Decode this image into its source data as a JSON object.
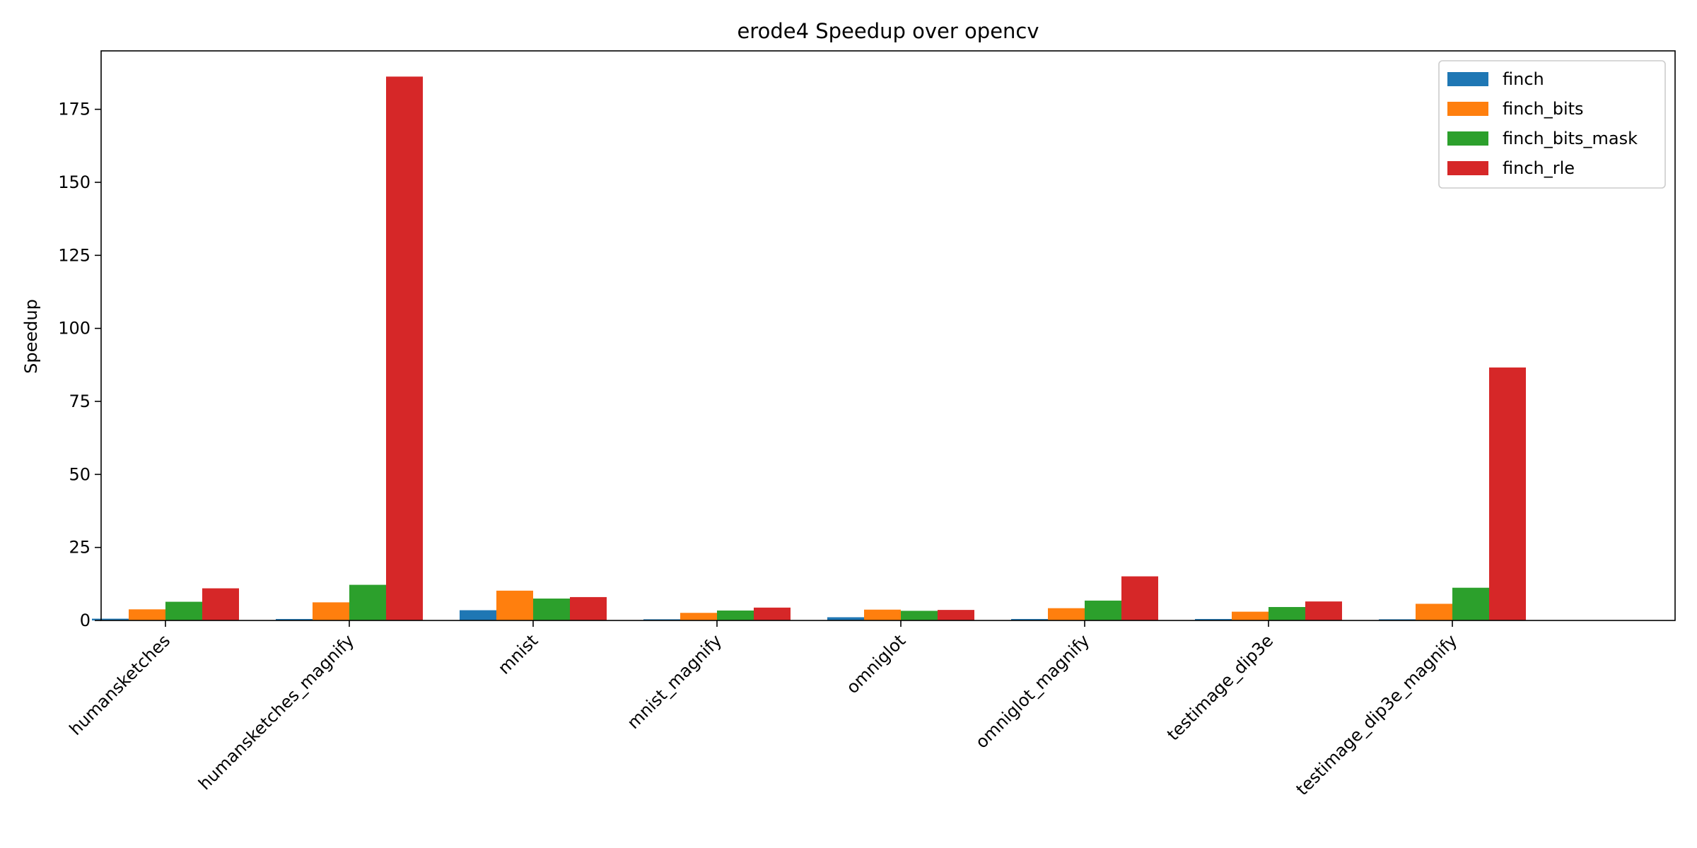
{
  "chart_data": {
    "type": "bar",
    "title": "erode4 Speedup over opencv",
    "xlabel": "",
    "ylabel": "Speedup",
    "ylim": [
      0,
      195
    ],
    "yticks": [
      0,
      25,
      50,
      75,
      100,
      125,
      150,
      175
    ],
    "grid": false,
    "legend_position": "top-right",
    "categories": [
      "humansketches",
      "humansketches_magnify",
      "mnist",
      "mnist_magnify",
      "omniglot",
      "omniglot_magnify",
      "testimage_dip3e",
      "testimage_dip3e_magnify"
    ],
    "series": [
      {
        "name": "finch",
        "color": "#1f77b4",
        "values": [
          0.6,
          0.5,
          3.5,
          0.4,
          1.1,
          0.5,
          0.5,
          0.4
        ]
      },
      {
        "name": "finch_bits",
        "color": "#ff7f0e",
        "values": [
          3.8,
          6.2,
          10.2,
          2.6,
          3.7,
          4.2,
          3.0,
          5.7
        ]
      },
      {
        "name": "finch_bits_mask",
        "color": "#2ca02c",
        "values": [
          6.4,
          12.2,
          7.5,
          3.4,
          3.3,
          6.8,
          4.6,
          11.2
        ]
      },
      {
        "name": "finch_rle",
        "color": "#d62728",
        "values": [
          11.0,
          186.2,
          8.0,
          4.4,
          3.6,
          15.1,
          6.5,
          86.6
        ]
      }
    ]
  }
}
